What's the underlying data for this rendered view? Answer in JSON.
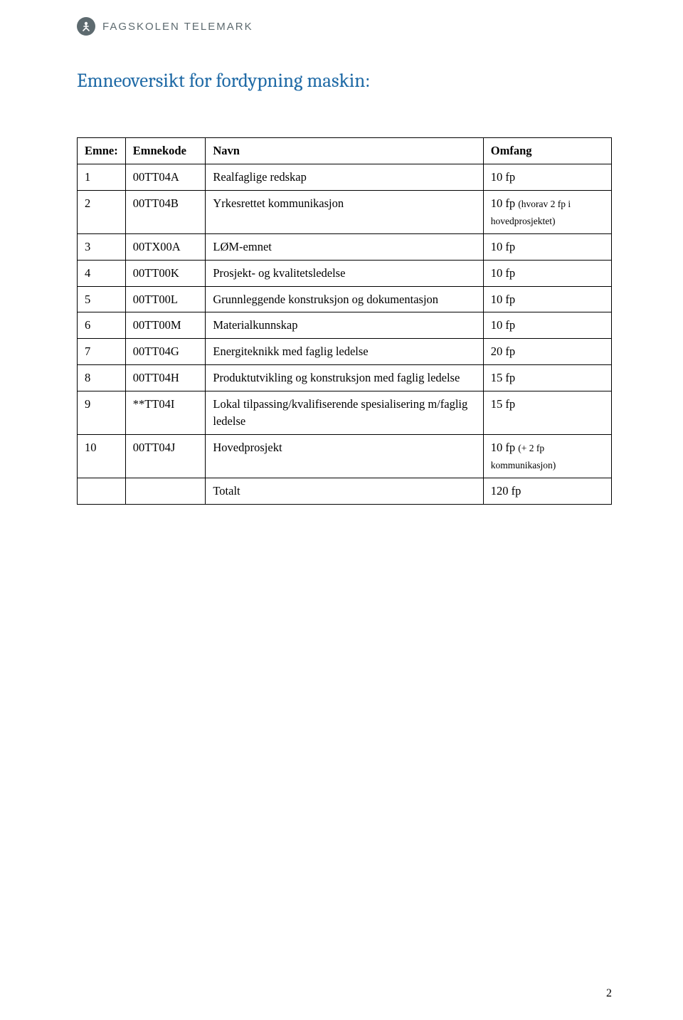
{
  "header": {
    "brand": "FAGSKOLEN TELEMARK"
  },
  "title": "Emneoversikt for fordypning maskin:",
  "table": {
    "columns": {
      "emne": "Emne:",
      "emnekode": "Emnekode",
      "navn": "Navn",
      "omfang": "Omfang"
    },
    "rows": [
      {
        "n": "1",
        "kode": "00TT04A",
        "navn": "Realfaglige redskap",
        "omfang": "10 fp",
        "omfang_note": ""
      },
      {
        "n": "2",
        "kode": "00TT04B",
        "navn": "Yrkesrettet kommunikasjon",
        "omfang": "10 fp ",
        "omfang_note": "(hvorav 2 fp i hovedprosjektet)"
      },
      {
        "n": "3",
        "kode": "00TX00A",
        "navn": "LØM-emnet",
        "omfang": "10 fp",
        "omfang_note": ""
      },
      {
        "n": "4",
        "kode": "00TT00K",
        "navn": "Prosjekt- og kvalitetsledelse",
        "omfang": "10 fp",
        "omfang_note": ""
      },
      {
        "n": "5",
        "kode": "00TT00L",
        "navn": "Grunnleggende konstruksjon og dokumentasjon",
        "omfang": "10 fp",
        "omfang_note": ""
      },
      {
        "n": "6",
        "kode": "00TT00M",
        "navn": "Materialkunnskap",
        "omfang": "10 fp",
        "omfang_note": ""
      },
      {
        "n": "7",
        "kode": "00TT04G",
        "navn": "Energiteknikk med faglig ledelse",
        "omfang": "20 fp",
        "omfang_note": ""
      },
      {
        "n": "8",
        "kode": "00TT04H",
        "navn": "Produktutvikling og konstruksjon med faglig ledelse",
        "omfang": "15 fp",
        "omfang_note": ""
      },
      {
        "n": "9",
        "kode": "**TT04I",
        "navn": "Lokal tilpassing/kvalifiserende spesialisering m/faglig ledelse",
        "omfang": "15 fp",
        "omfang_note": ""
      },
      {
        "n": "10",
        "kode": "00TT04J",
        "navn": "Hovedprosjekt",
        "omfang": "10 fp ",
        "omfang_note": "(+ 2 fp kommunikasjon)"
      }
    ],
    "total": {
      "label": "Totalt",
      "value": "120 fp"
    }
  },
  "pageNumber": "2"
}
